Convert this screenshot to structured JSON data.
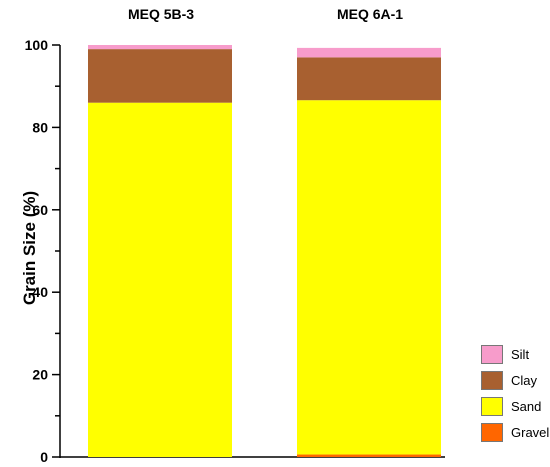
{
  "chart_data": {
    "type": "bar",
    "stacked": true,
    "categories": [
      "MEQ 5B-3",
      "MEQ 6A-1"
    ],
    "ylabel": "Grain Size (%)",
    "ylim": [
      0,
      100
    ],
    "yticks": [
      0,
      20,
      40,
      60,
      80,
      100
    ],
    "grid": false,
    "legend_position": "bottom-right",
    "series": [
      {
        "name": "Gravel",
        "color": "#FF6600",
        "values": [
          0.0,
          0.6
        ]
      },
      {
        "name": "Sand",
        "color": "#FFFF00",
        "values": [
          86.0,
          86.0
        ]
      },
      {
        "name": "Clay",
        "color": "#A86030",
        "values": [
          13.0,
          10.4
        ]
      },
      {
        "name": "Silt",
        "color": "#F79CCB",
        "values": [
          1.0,
          2.3
        ]
      }
    ],
    "legend_order": [
      "Silt",
      "Clay",
      "Sand",
      "Gravel"
    ]
  }
}
